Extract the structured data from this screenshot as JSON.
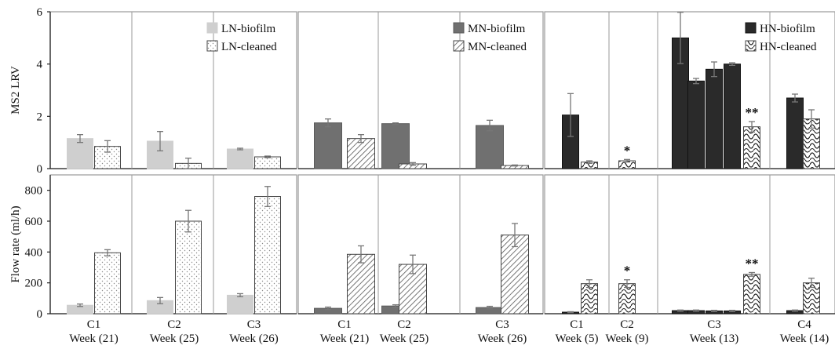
{
  "chart_data": [
    {
      "panel": "top-left",
      "type": "bar",
      "ylabel": "MS2 LRV",
      "ylim": [
        0,
        6
      ],
      "yticks": [
        "0",
        "2",
        "4",
        "6"
      ],
      "legend": [
        "LN-biofilm",
        "LN-cleaned"
      ],
      "legend_position": "top-right",
      "colors": {
        "LN-biofilm": "#cfcfcf",
        "LN-cleaned": "#ffffff"
      },
      "groups": [
        {
          "id": "C1",
          "bars": [
            {
              "series": "LN-biofilm",
              "value": 1.15,
              "err": 0.15
            },
            {
              "series": "LN-cleaned",
              "value": 0.85,
              "err": 0.22
            }
          ]
        },
        {
          "id": "C2",
          "bars": [
            {
              "series": "LN-biofilm",
              "value": 1.05,
              "err": 0.37
            },
            {
              "series": "LN-cleaned",
              "value": 0.2,
              "err": 0.2
            }
          ]
        },
        {
          "id": "C3",
          "bars": [
            {
              "series": "LN-biofilm",
              "value": 0.75,
              "err": 0.03
            },
            {
              "series": "LN-cleaned",
              "value": 0.45,
              "err": 0.03
            }
          ]
        }
      ]
    },
    {
      "panel": "top-middle",
      "type": "bar",
      "ylim": [
        0,
        6
      ],
      "legend": [
        "MN-biofilm",
        "MN-cleaned"
      ],
      "legend_position": "top-right",
      "colors": {
        "MN-biofilm": "#707070",
        "MN-cleaned": "#ffffff"
      },
      "groups": [
        {
          "id": "C1",
          "bars": [
            {
              "series": "MN-biofilm",
              "value": 1.75,
              "err": 0.15
            },
            {
              "series": "MN-cleaned",
              "value": 1.15,
              "err": 0.15
            }
          ]
        },
        {
          "id": "C2",
          "bars": [
            {
              "series": "MN-biofilm",
              "value": 1.72,
              "err": 0.03
            },
            {
              "series": "MN-cleaned",
              "value": 0.18,
              "err": 0.05
            }
          ]
        },
        {
          "id": "C3",
          "bars": [
            {
              "series": "MN-biofilm",
              "value": 1.65,
              "err": 0.2
            },
            {
              "series": "MN-cleaned",
              "value": 0.12,
              "err": 0.02
            }
          ]
        }
      ]
    },
    {
      "panel": "top-right",
      "type": "bar",
      "ylim": [
        0,
        6
      ],
      "legend": [
        "HN-biofilm",
        "HN-cleaned"
      ],
      "legend_position": "top-right",
      "colors": {
        "HN-biofilm": "#2a2a2a",
        "HN-cleaned": "#ffffff"
      },
      "groups": [
        {
          "id": "C1",
          "bars": [
            {
              "series": "HN-biofilm",
              "value": 2.05,
              "err": 0.82
            },
            {
              "series": "HN-cleaned",
              "value": 0.25,
              "err": 0.05
            }
          ]
        },
        {
          "id": "C2",
          "bars": [
            {
              "series": "HN-cleaned",
              "value": 0.3,
              "err": 0.05,
              "annotation": "*"
            }
          ]
        },
        {
          "id": "C3",
          "bars": [
            {
              "series": "HN-biofilm",
              "value": 5.0,
              "err": 0.98
            },
            {
              "series": "HN-biofilm",
              "value": 3.35,
              "err": 0.1
            },
            {
              "series": "HN-biofilm",
              "value": 3.8,
              "err": 0.28
            },
            {
              "series": "HN-biofilm",
              "value": 4.0,
              "err": 0.05
            },
            {
              "series": "HN-cleaned",
              "value": 1.6,
              "err": 0.2,
              "annotation": "**"
            }
          ]
        },
        {
          "id": "C4",
          "bars": [
            {
              "series": "HN-biofilm",
              "value": 2.7,
              "err": 0.15
            },
            {
              "series": "HN-cleaned",
              "value": 1.9,
              "err": 0.35
            }
          ]
        }
      ]
    },
    {
      "panel": "bottom-left",
      "type": "bar",
      "ylabel": "Flow rate (ml/h)",
      "ylim": [
        0,
        900
      ],
      "yticks": [
        "0",
        "200",
        "400",
        "600",
        "800"
      ],
      "groups": [
        {
          "id": "C1",
          "label": [
            "C1",
            "Week (21)"
          ],
          "bars": [
            {
              "series": "LN-biofilm",
              "value": 55,
              "err": 8
            },
            {
              "series": "LN-cleaned",
              "value": 395,
              "err": 20
            }
          ]
        },
        {
          "id": "C2",
          "label": [
            "C2",
            "Week (25)"
          ],
          "bars": [
            {
              "series": "LN-biofilm",
              "value": 85,
              "err": 20
            },
            {
              "series": "LN-cleaned",
              "value": 600,
              "err": 70
            }
          ]
        },
        {
          "id": "C3",
          "label": [
            "C3",
            "Week (26)"
          ],
          "bars": [
            {
              "series": "LN-biofilm",
              "value": 120,
              "err": 10
            },
            {
              "series": "LN-cleaned",
              "value": 760,
              "err": 65
            }
          ]
        }
      ]
    },
    {
      "panel": "bottom-middle",
      "type": "bar",
      "ylim": [
        0,
        900
      ],
      "groups": [
        {
          "id": "C1",
          "label": [
            "C1",
            "Week (21)"
          ],
          "bars": [
            {
              "series": "MN-biofilm",
              "value": 35,
              "err": 8
            },
            {
              "series": "MN-cleaned",
              "value": 385,
              "err": 55
            }
          ]
        },
        {
          "id": "C2",
          "label": [
            "C2",
            "Week (25)"
          ],
          "bars": [
            {
              "series": "MN-biofilm",
              "value": 50,
              "err": 8
            },
            {
              "series": "MN-cleaned",
              "value": 320,
              "err": 60
            }
          ]
        },
        {
          "id": "C3",
          "label": [
            "C3",
            "Week (26)"
          ],
          "bars": [
            {
              "series": "MN-biofilm",
              "value": 40,
              "err": 8
            },
            {
              "series": "MN-cleaned",
              "value": 510,
              "err": 75
            }
          ]
        }
      ]
    },
    {
      "panel": "bottom-right",
      "type": "bar",
      "ylim": [
        0,
        900
      ],
      "groups": [
        {
          "id": "C1",
          "label": [
            "C1",
            "Week (5)"
          ],
          "bars": [
            {
              "series": "HN-biofilm",
              "value": 10,
              "err": 3
            },
            {
              "series": "HN-cleaned",
              "value": 195,
              "err": 25
            }
          ]
        },
        {
          "id": "C2",
          "label": [
            "C2",
            "Week (9)"
          ],
          "bars": [
            {
              "series": "HN-cleaned",
              "value": 195,
              "err": 25,
              "annotation": "*"
            }
          ]
        },
        {
          "id": "C3",
          "label": [
            "C3",
            "Week (13)"
          ],
          "bars": [
            {
              "series": "HN-biofilm",
              "value": 20,
              "err": 4
            },
            {
              "series": "HN-biofilm",
              "value": 20,
              "err": 4
            },
            {
              "series": "HN-biofilm",
              "value": 18,
              "err": 4
            },
            {
              "series": "HN-biofilm",
              "value": 18,
              "err": 4
            },
            {
              "series": "HN-cleaned",
              "value": 255,
              "err": 12,
              "annotation": "**"
            }
          ]
        },
        {
          "id": "C4",
          "label": [
            "C4",
            "Week (14)"
          ],
          "bars": [
            {
              "series": "HN-biofilm",
              "value": 20,
              "err": 4
            },
            {
              "series": "HN-cleaned",
              "value": 200,
              "err": 30
            }
          ]
        }
      ]
    }
  ]
}
